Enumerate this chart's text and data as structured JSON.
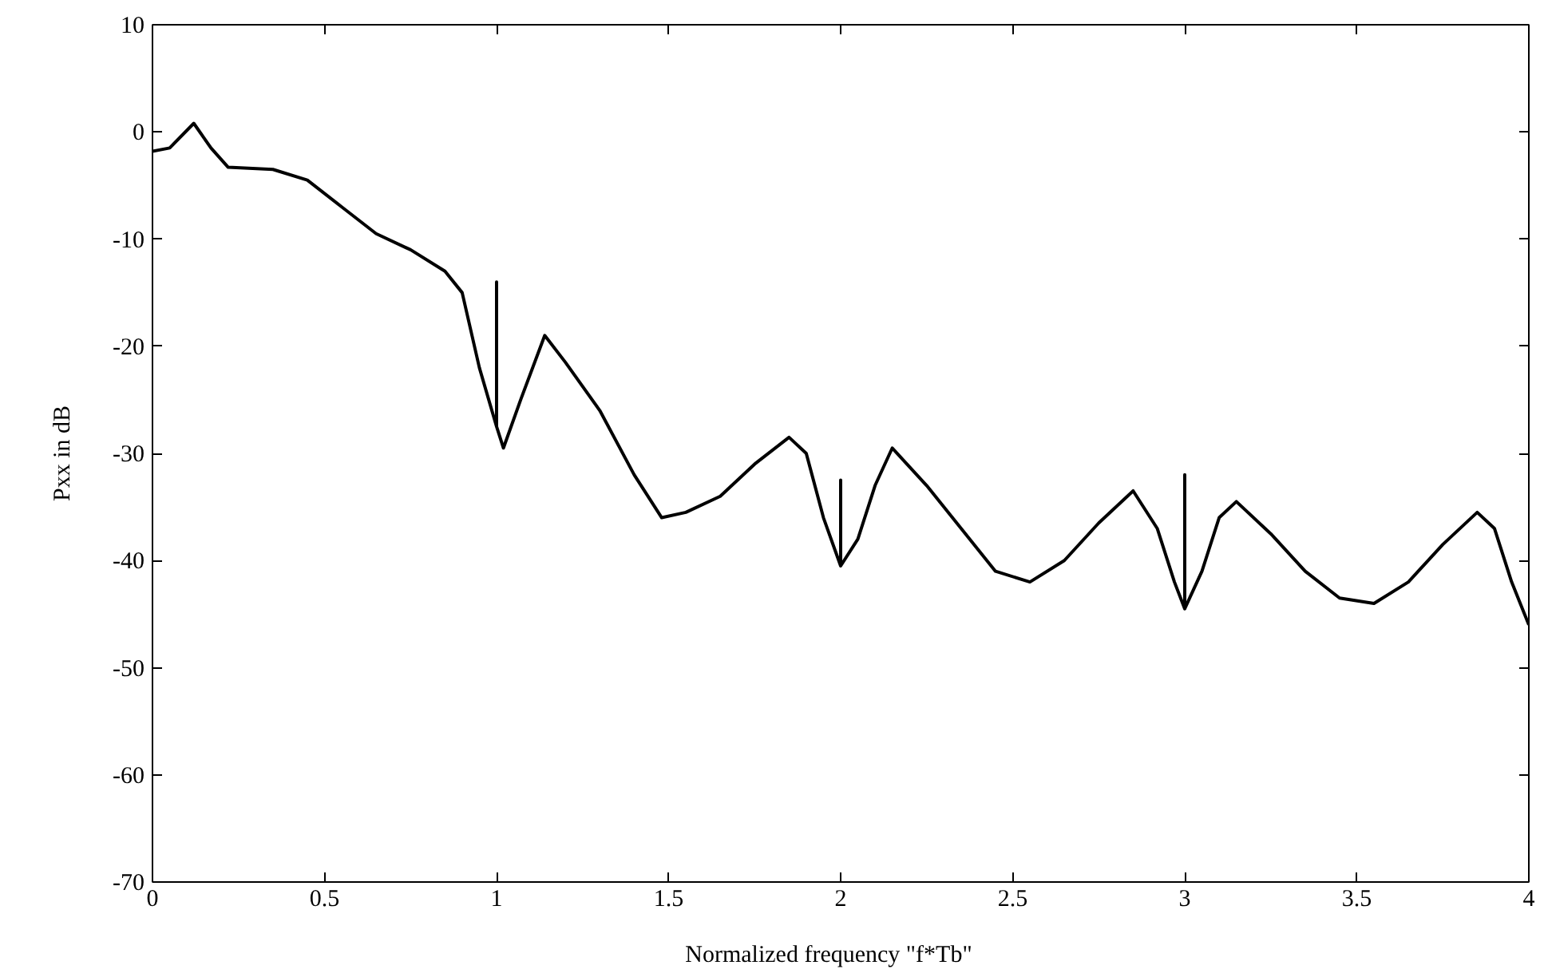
{
  "chart_data": {
    "type": "line",
    "xlabel": "Normalized frequency     \"f*Tb\"",
    "ylabel": "Pxx in dB",
    "x": [
      0,
      0.05,
      0.12,
      0.17,
      0.22,
      0.35,
      0.45,
      0.55,
      0.65,
      0.75,
      0.85,
      0.9,
      0.95,
      1.0,
      1.0,
      1.0,
      1.02,
      1.07,
      1.14,
      1.2,
      1.3,
      1.4,
      1.48,
      1.55,
      1.65,
      1.75,
      1.85,
      1.9,
      1.95,
      2.0,
      2.0,
      2.0,
      2.05,
      2.1,
      2.15,
      2.25,
      2.35,
      2.45,
      2.55,
      2.65,
      2.75,
      2.85,
      2.92,
      2.97,
      3.0,
      3.0,
      3.0,
      3.05,
      3.1,
      3.15,
      3.25,
      3.35,
      3.45,
      3.55,
      3.65,
      3.75,
      3.85,
      3.9,
      3.95,
      4.0
    ],
    "series": [
      {
        "color": "#000000",
        "values": [
          -1.8,
          -1.5,
          0.8,
          -1.5,
          -3.3,
          -3.5,
          -4.5,
          -7,
          -9.5,
          -11,
          -13,
          -15,
          -22,
          -27.5,
          -14,
          -27.5,
          -29.5,
          -25,
          -19,
          -21.5,
          -26,
          -32,
          -36,
          -35.5,
          -34,
          -31,
          -28.5,
          -30,
          -36,
          -40.5,
          -32.5,
          -40.5,
          -38,
          -33,
          -29.5,
          -33,
          -37,
          -41,
          -42,
          -40,
          -36.5,
          -33.5,
          -37,
          -42,
          -44.5,
          -32,
          -44.5,
          -41,
          -36,
          -34.5,
          -37.5,
          -41,
          -43.5,
          -44,
          -42,
          -38.5,
          -35.5,
          -37,
          -42,
          -46
        ]
      }
    ],
    "xlim": [
      0,
      4
    ],
    "xticks": [
      0,
      0.5,
      1,
      1.5,
      2,
      2.5,
      3,
      3.5,
      4
    ],
    "ylim": [
      -70,
      10
    ],
    "yticks": [
      -70,
      -60,
      -50,
      -40,
      -30,
      -20,
      -10,
      0,
      10
    ],
    "grid": false,
    "line_style": "solid"
  }
}
